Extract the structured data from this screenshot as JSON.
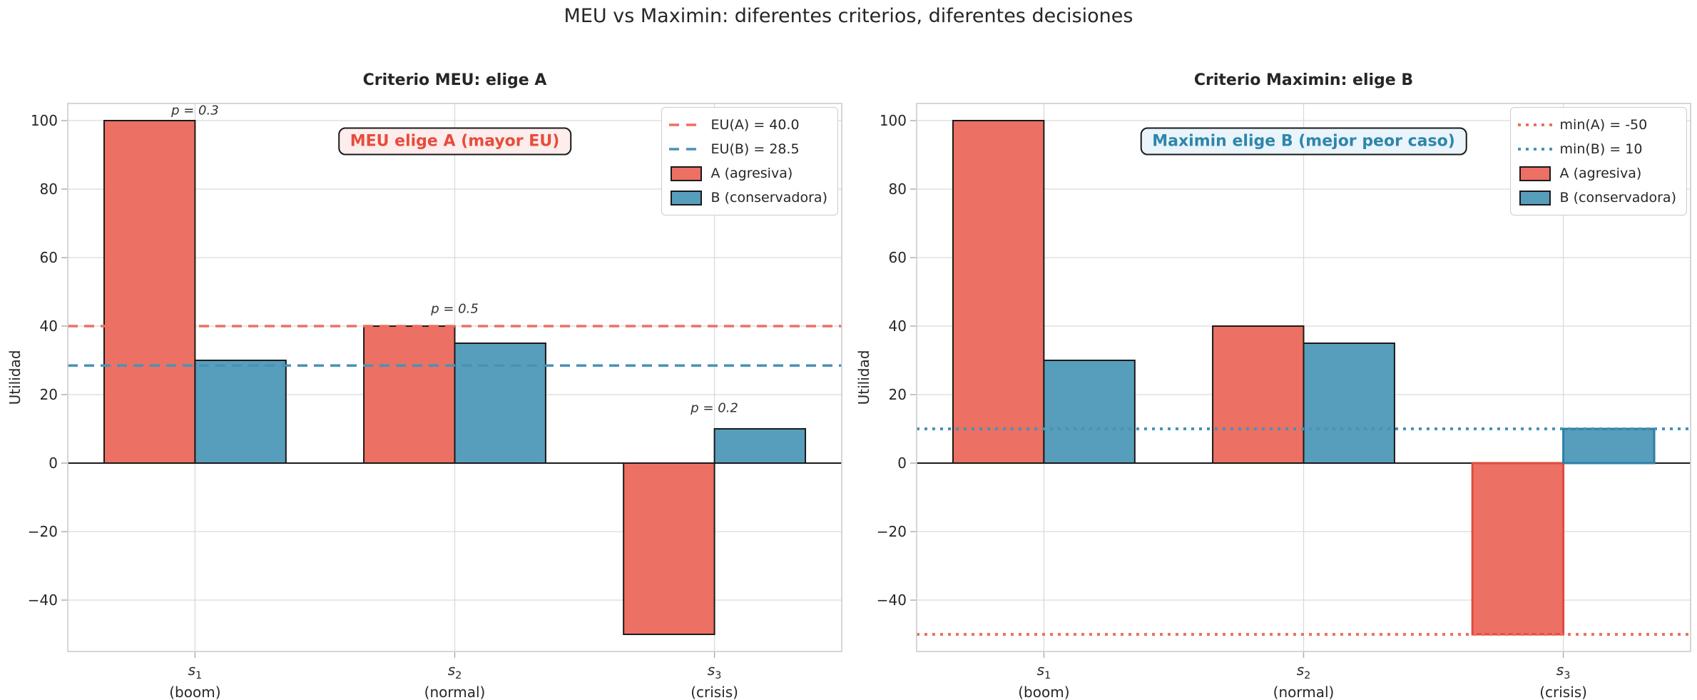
{
  "figure": {
    "title": "MEU vs Maximin: diferentes criterios, diferentes decisiones"
  },
  "colors": {
    "bar_a": "#EC7063",
    "bar_b": "#579DBC",
    "bar_edge": "#1a1a1a",
    "line_a": "#EC7063",
    "line_b": "#4793B7",
    "highlight_edge_a": "#DE4B3C",
    "highlight_edge_b": "#2E7EA6",
    "grid": "#D9D9D9",
    "spine": "#CCCCCC",
    "tick": "#AAAAAA",
    "zero_line": "#1a1a1a",
    "text": "#262626"
  },
  "chart_data": [
    {
      "type": "bar",
      "title": "Criterio MEU: elige A",
      "ylabel": "Utilidad",
      "ylim": [
        -55,
        105
      ],
      "yticks": [
        -40,
        -20,
        0,
        20,
        40,
        60,
        80,
        100
      ],
      "grid": true,
      "legend_position": "top-right",
      "categories": [
        {
          "symbol": "s",
          "sub": "1",
          "desc": "(boom)"
        },
        {
          "symbol": "s",
          "sub": "2",
          "desc": "(normal)"
        },
        {
          "symbol": "s",
          "sub": "3",
          "desc": "(crisis)"
        }
      ],
      "series": [
        {
          "name": "A (agresiva)",
          "values": [
            100,
            40,
            -50
          ]
        },
        {
          "name": "B (conservadora)",
          "values": [
            30,
            35,
            10
          ]
        }
      ],
      "ref_lines": [
        {
          "label": "EU(A) = 40.0",
          "value": 40.0,
          "dash": "dashed",
          "color_key": "line_a"
        },
        {
          "label": "EU(B) = 28.5",
          "value": 28.5,
          "dash": "dashed",
          "color_key": "line_b"
        }
      ],
      "prob_labels": [
        {
          "text": "p = 0.3",
          "category": 0,
          "y": 103
        },
        {
          "text": "p = 0.5",
          "category": 1,
          "y": 45
        },
        {
          "text": "p = 0.2",
          "category": 2,
          "y": 16
        }
      ],
      "callout": {
        "text": "MEU elige A (mayor EU)",
        "color": "#E74C3C",
        "bg": "#FDEDEC",
        "x_category": 1,
        "y": 94
      },
      "highlight_bars": []
    },
    {
      "type": "bar",
      "title": "Criterio Maximin: elige B",
      "ylabel": "Utilidad",
      "ylim": [
        -55,
        105
      ],
      "yticks": [
        -40,
        -20,
        0,
        20,
        40,
        60,
        80,
        100
      ],
      "grid": true,
      "legend_position": "top-right",
      "categories": [
        {
          "symbol": "s",
          "sub": "1",
          "desc": "(boom)"
        },
        {
          "symbol": "s",
          "sub": "2",
          "desc": "(normal)"
        },
        {
          "symbol": "s",
          "sub": "3",
          "desc": "(crisis)"
        }
      ],
      "series": [
        {
          "name": "A (agresiva)",
          "values": [
            100,
            40,
            -50
          ]
        },
        {
          "name": "B (conservadora)",
          "values": [
            30,
            35,
            10
          ]
        }
      ],
      "ref_lines": [
        {
          "label": "min(A) = -50",
          "value": -50,
          "dash": "dotted",
          "color_key": "line_a"
        },
        {
          "label": "min(B) = 10",
          "value": 10,
          "dash": "dotted",
          "color_key": "line_b"
        }
      ],
      "prob_labels": [],
      "callout": {
        "text": "Maximin elige B (mejor peor caso)",
        "color": "#2E86AB",
        "bg": "#EAF4FB",
        "x_category": 1,
        "y": 94
      },
      "highlight_bars": [
        {
          "series": 0,
          "category": 2,
          "edge_key": "highlight_edge_a"
        },
        {
          "series": 1,
          "category": 2,
          "edge_key": "highlight_edge_b"
        }
      ]
    }
  ]
}
